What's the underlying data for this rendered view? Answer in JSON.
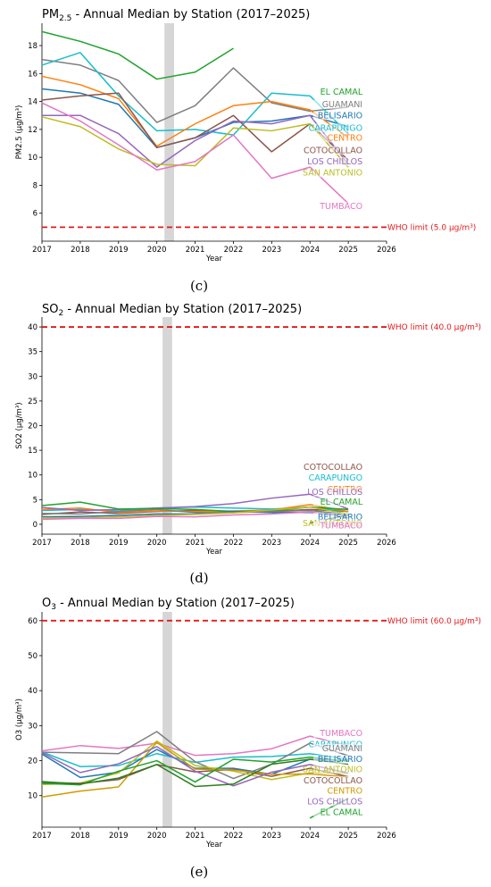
{
  "chart_data": [
    {
      "type": "line",
      "panel": "c",
      "caption": "(c)",
      "title": "PM2.5 - Annual Median by Station (2017–2025)",
      "title_main": "PM",
      "title_sub": "2.5",
      "title_rest": " - Annual Median by Station (2017–2025)",
      "xlabel": "Year",
      "ylabel": "PM2.5 (µg/m³)",
      "xlim": [
        2017,
        2026
      ],
      "ylim": [
        4,
        19.6
      ],
      "xticks": [
        2017,
        2018,
        2019,
        2020,
        2021,
        2022,
        2023,
        2024,
        2025,
        2026
      ],
      "yticks": [
        6,
        8,
        10,
        12,
        14,
        16,
        18
      ],
      "shade": [
        2020.2,
        2020.45
      ],
      "who_limit": {
        "value": 5,
        "label": "WHO limit (5.0 µg/m³)"
      },
      "series": [
        {
          "name": "EL CAMAL",
          "color": "#1fa32b",
          "x": [
            2017,
            2018,
            2019,
            2020,
            2021,
            2022
          ],
          "values": [
            19.0,
            18.3,
            17.4,
            15.6,
            16.1,
            17.8
          ],
          "label_y": 14.5,
          "x2": [
            2025
          ],
          "values2": [
            13.7
          ]
        },
        {
          "name": "GUAMANI",
          "color": "#7f7f7f",
          "x": [
            2017,
            2018,
            2019,
            2020,
            2021,
            2022,
            2023,
            2024,
            2025
          ],
          "values": [
            17.0,
            16.6,
            15.5,
            12.5,
            13.7,
            16.4,
            13.9,
            13.3,
            13.6
          ],
          "label_y": 13.6
        },
        {
          "name": "BELISARIO",
          "color": "#1f77b4",
          "x": [
            2017,
            2018,
            2019,
            2020,
            2021,
            2022,
            2023,
            2024,
            2025
          ],
          "values": [
            14.9,
            14.6,
            13.8,
            10.7,
            11.4,
            12.5,
            12.6,
            13.0,
            12.2
          ],
          "label_y": 12.8
        },
        {
          "name": "CARAPUNGO",
          "color": "#17becf",
          "x": [
            2017,
            2018,
            2019,
            2020,
            2021,
            2022,
            2023,
            2024,
            2025
          ],
          "values": [
            16.6,
            17.5,
            14.4,
            11.9,
            12.0,
            11.6,
            14.6,
            14.4,
            11.7
          ],
          "label_y": 11.9
        },
        {
          "name": "CENTRO",
          "color": "#ff7f0e",
          "x": [
            2017,
            2018,
            2019,
            2020,
            2021,
            2022,
            2023,
            2024,
            2025
          ],
          "values": [
            15.8,
            15.2,
            14.2,
            10.8,
            12.4,
            13.7,
            14.0,
            13.4,
            11.4
          ],
          "label_y": 11.2
        },
        {
          "name": "COTOCOLLAO",
          "color": "#8c564b",
          "x": [
            2017,
            2018,
            2019,
            2020,
            2021,
            2022,
            2023,
            2024,
            2025
          ],
          "values": [
            14.1,
            14.4,
            14.6,
            10.7,
            11.4,
            13.0,
            10.4,
            12.4,
            9.8
          ],
          "label_y": 10.3
        },
        {
          "name": "LOS CHILLOS",
          "color": "#9467bd",
          "x": [
            2017,
            2018,
            2019,
            2020,
            2021,
            2022,
            2023,
            2024,
            2025
          ],
          "values": [
            13.0,
            13.0,
            11.7,
            9.3,
            11.2,
            12.6,
            12.4,
            13.0,
            9.5
          ],
          "label_y": 9.5
        },
        {
          "name": "SAN ANTONIO",
          "color": "#bcbd22",
          "x": [
            2017,
            2018,
            2019,
            2020,
            2021,
            2022,
            2023,
            2024,
            2025
          ],
          "values": [
            12.9,
            12.2,
            10.6,
            9.5,
            9.4,
            12.1,
            11.9,
            12.4,
            9.3
          ],
          "label_y": 8.7
        },
        {
          "name": "TUMBACO",
          "color": "#e377c2",
          "x": [
            2017,
            2018,
            2019,
            2020,
            2021,
            2022,
            2023,
            2024,
            2025
          ],
          "values": [
            13.9,
            12.6,
            10.9,
            9.1,
            9.7,
            11.6,
            8.5,
            9.3,
            6.7
          ],
          "label_y": 6.3
        }
      ]
    },
    {
      "type": "line",
      "panel": "d",
      "caption": "(d)",
      "title": "SO2 - Annual Median by Station (2017–2025)",
      "title_main": "SO",
      "title_sub": "2",
      "title_rest": " - Annual Median by Station (2017–2025)",
      "xlabel": "Year",
      "ylabel": "SO2 (µg/m³)",
      "xlim": [
        2017,
        2026
      ],
      "ylim": [
        -2,
        42
      ],
      "xticks": [
        2017,
        2018,
        2019,
        2020,
        2021,
        2022,
        2023,
        2024,
        2025,
        2026
      ],
      "yticks": [
        0,
        5,
        10,
        15,
        20,
        25,
        30,
        35,
        40
      ],
      "shade": [
        2020.15,
        2020.4
      ],
      "who_limit": {
        "value": 40,
        "label": "WHO limit (40.0 µg/m³)"
      },
      "series": [
        {
          "name": "COTOCOLLAO",
          "color": "#8c564b",
          "x": [
            2017,
            2018,
            2019,
            2020,
            2021,
            2022,
            2023,
            2024,
            2025
          ],
          "values": [
            2.0,
            2.5,
            2.2,
            2.6,
            2.8,
            2.5,
            2.6,
            3.0,
            2.6
          ],
          "label_y": 11.0
        },
        {
          "name": "CARAPUNGO",
          "color": "#17becf",
          "x": [
            2017,
            2018,
            2019,
            2020,
            2021,
            2022,
            2023,
            2024,
            2025
          ],
          "values": [
            2.8,
            3.0,
            2.7,
            3.3,
            3.5,
            3.3,
            3.1,
            3.5,
            2.6
          ],
          "label_y": 8.9
        },
        {
          "name": "CENTRO",
          "color": "#ff7f0e",
          "x": [
            2017,
            2018,
            2019,
            2020,
            2021,
            2022,
            2023,
            2024,
            2025
          ],
          "values": [
            3.0,
            3.3,
            2.4,
            2.7,
            2.6,
            2.7,
            2.9,
            4.0,
            2.6
          ],
          "label_y": 6.5
        },
        {
          "name": "LOS CHILLOS",
          "color": "#9467bd",
          "x": [
            2017,
            2018,
            2019,
            2020,
            2021,
            2022,
            2023,
            2024,
            2025
          ],
          "values": [
            3.4,
            2.8,
            3.0,
            3.3,
            3.6,
            4.2,
            5.3,
            6.1,
            3.1
          ],
          "label_y": 6.0
        },
        {
          "name": "EL CAMAL",
          "color": "#1fa32b",
          "x": [
            2017,
            2018,
            2019,
            2020,
            2021,
            2022,
            2023,
            2024,
            2025
          ],
          "values": [
            3.8,
            4.5,
            3.1,
            3.2,
            3.0,
            2.6,
            2.7,
            3.5,
            3.0
          ],
          "label_y": 4.0
        },
        {
          "name": "BELISARIO",
          "color": "#1f77b4",
          "x": [
            2017,
            2018,
            2019,
            2020,
            2021,
            2022,
            2023,
            2024,
            2025
          ],
          "values": [
            1.5,
            1.6,
            1.8,
            2.1,
            2.1,
            2.6,
            2.4,
            2.4,
            1.9
          ],
          "label_y": 0.9
        },
        {
          "name": "GUAMANI",
          "color": "#7f7f7f",
          "x": [
            2017,
            2018,
            2019,
            2020,
            2021,
            2022,
            2023,
            2024,
            2025
          ],
          "values": [
            2.2,
            2.1,
            2.6,
            3.0,
            2.4,
            2.4,
            2.6,
            2.8,
            2.0
          ],
          "label_y": -0.6
        },
        {
          "name": "SAN ANTONIO",
          "color": "#bcbd22",
          "x": [
            2017,
            2018,
            2019,
            2020,
            2021,
            2022,
            2023,
            2024,
            2025
          ],
          "values": [
            1.3,
            1.3,
            1.5,
            1.8,
            2.0,
            2.3,
            2.9,
            3.5,
            2.1
          ],
          "label_y": -0.4
        },
        {
          "name": "TUMBACO",
          "color": "#e377c2",
          "x": [
            2017,
            2018,
            2019,
            2020,
            2021,
            2022,
            2023,
            2024,
            2025
          ],
          "values": [
            1.0,
            1.2,
            1.2,
            1.6,
            1.5,
            1.9,
            2.1,
            2.5,
            1.4
          ],
          "label_y": -0.8
        }
      ],
      "extra": [
        {
          "color": "#2e7d1f",
          "x": [
            2024,
            2025
          ],
          "values": [
            0.3,
            1.9
          ]
        }
      ]
    },
    {
      "type": "line",
      "panel": "e",
      "caption": "(e)",
      "title": "O3 - Annual Median by Station (2017–2025)",
      "title_main": "O",
      "title_sub": "3",
      "title_rest": " - Annual Median by Station (2017–2025)",
      "xlabel": "Year",
      "ylabel": "O3 (µg/m³)",
      "xlim": [
        2017,
        2026
      ],
      "ylim": [
        1,
        62.5
      ],
      "xticks": [
        2017,
        2018,
        2019,
        2020,
        2021,
        2022,
        2023,
        2024,
        2025,
        2026
      ],
      "yticks": [
        10,
        20,
        30,
        40,
        50,
        60
      ],
      "shade": [
        2020.15,
        2020.4
      ],
      "who_limit": {
        "value": 60,
        "label": "WHO limit (60.0 µg/m³)"
      },
      "series": [
        {
          "name": "TUMBACO",
          "color": "#e377c2",
          "x": [
            2017,
            2018,
            2019,
            2020,
            2021,
            2022,
            2023,
            2024,
            2025
          ],
          "values": [
            22.8,
            24.3,
            23.5,
            25.0,
            21.5,
            22.0,
            23.4,
            27.0,
            24.2
          ],
          "label_y": 27.0
        },
        {
          "name": "CARAPUNGO",
          "color": "#17becf",
          "x": [
            2017,
            2018,
            2019,
            2020,
            2021,
            2022,
            2023,
            2024,
            2025
          ],
          "values": [
            22.5,
            18.3,
            18.6,
            22.0,
            19.5,
            21.0,
            21.2,
            22.0,
            20.4
          ],
          "label_y": 23.8
        },
        {
          "name": "GUAMANI",
          "color": "#7f7f7f",
          "x": [
            2017,
            2018,
            2019,
            2020,
            2021,
            2022,
            2023,
            2024,
            2025
          ],
          "values": [
            22.4,
            22.2,
            22.0,
            28.3,
            19.7,
            14.9,
            19.0,
            25.0,
            21.4
          ],
          "label_y": 22.7
        },
        {
          "name": "BELISARIO",
          "color": "#1f77b4",
          "x": [
            2017,
            2018,
            2019,
            2020,
            2021,
            2022,
            2023,
            2024,
            2025
          ],
          "values": [
            21.9,
            15.2,
            16.7,
            23.2,
            17.8,
            17.8,
            16.1,
            20.4,
            20.0
          ],
          "label_y": 19.6
        },
        {
          "name": "SAN ANTONIO",
          "color": "#bcbd22",
          "x": [
            2017,
            2018,
            2019,
            2020,
            2021,
            2022,
            2023,
            2024,
            2025
          ],
          "values": [
            13.2,
            13.6,
            16.5,
            25.6,
            18.6,
            17.0,
            14.6,
            16.5,
            16.4
          ],
          "label_y": 16.7
        },
        {
          "name": "COTOCOLLAO",
          "color": "#8c564b",
          "x": [
            2017,
            2018,
            2019,
            2020,
            2021,
            2022,
            2023,
            2024,
            2025
          ],
          "values": [
            13.8,
            13.5,
            14.6,
            18.9,
            16.8,
            17.5,
            15.5,
            17.8,
            15.4
          ],
          "label_y": 13.5
        },
        {
          "name": "CENTRO",
          "color": "#d19a00",
          "x": [
            2017,
            2018,
            2019,
            2020,
            2021,
            2022,
            2023,
            2024,
            2025
          ],
          "values": [
            9.6,
            11.3,
            12.5,
            25.2,
            17.6,
            17.3,
            16.1,
            16.2,
            15.3
          ],
          "label_y": 10.6
        },
        {
          "name": "LOS CHILLOS",
          "color": "#9467bd",
          "x": [
            2017,
            2018,
            2019,
            2020,
            2021,
            2022,
            2023,
            2024,
            2025
          ],
          "values": [
            22.3,
            16.6,
            19.1,
            24.0,
            17.0,
            12.8,
            16.7,
            18.9,
            16.4
          ],
          "label_y": 7.5
        },
        {
          "name": "EL CAMAL",
          "color": "#1fa32b",
          "x": [
            2017,
            2018,
            2019,
            2020,
            2021,
            2022,
            2023,
            2024,
            2025
          ],
          "values": [
            13.5,
            13.1,
            17.0,
            20.0,
            13.9,
            20.4,
            19.6,
            21.0,
            19.8
          ],
          "label_y": 4.5
        }
      ],
      "extra": [
        {
          "color": "#2e7d1f",
          "x": [
            2017,
            2018,
            2019,
            2020,
            2021,
            2022,
            2023,
            2024,
            2025
          ],
          "values": [
            14.0,
            13.3,
            15.0,
            18.9,
            12.6,
            13.3,
            19.0,
            20.4,
            19.0
          ]
        },
        {
          "color": "#1fa32b",
          "x": [
            2024,
            2025
          ],
          "values": [
            3.6,
            9.2
          ]
        }
      ]
    }
  ]
}
